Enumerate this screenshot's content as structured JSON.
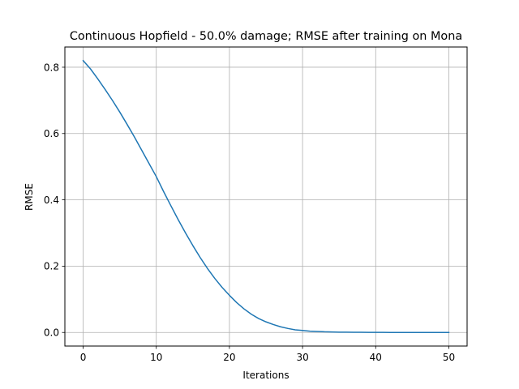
{
  "chart_data": {
    "type": "line",
    "title": "Continuous Hopfield - 50.0% damage; RMSE after training on Mona",
    "xlabel": "Iterations",
    "ylabel": "RMSE",
    "xlim": [
      -2.5,
      52.5
    ],
    "ylim": [
      -0.041,
      0.861
    ],
    "xticks": [
      0,
      10,
      20,
      30,
      40,
      50
    ],
    "yticks": [
      0.0,
      0.2,
      0.4,
      0.6,
      0.8
    ],
    "xtick_labels": [
      "0",
      "10",
      "20",
      "30",
      "40",
      "50"
    ],
    "ytick_labels": [
      "0.0",
      "0.2",
      "0.4",
      "0.6",
      "0.8"
    ],
    "grid": true,
    "series": [
      {
        "color": "#1f77b4",
        "x": [
          0,
          1,
          2,
          3,
          4,
          5,
          6,
          7,
          8,
          9,
          10,
          11,
          12,
          13,
          14,
          15,
          16,
          17,
          18,
          19,
          20,
          21,
          22,
          23,
          24,
          25,
          26,
          27,
          28,
          29,
          30,
          31,
          32,
          33,
          34,
          35,
          36,
          37,
          38,
          39,
          40,
          41,
          42,
          43,
          44,
          45,
          46,
          47,
          48,
          49,
          50
        ],
        "values": [
          0.82,
          0.795,
          0.765,
          0.733,
          0.7,
          0.665,
          0.628,
          0.59,
          0.55,
          0.51,
          0.47,
          0.425,
          0.382,
          0.34,
          0.3,
          0.262,
          0.226,
          0.193,
          0.163,
          0.136,
          0.112,
          0.09,
          0.071,
          0.055,
          0.042,
          0.032,
          0.024,
          0.017,
          0.012,
          0.008,
          0.006,
          0.004,
          0.003,
          0.002,
          0.0015,
          0.001,
          0.0008,
          0.0006,
          0.0004,
          0.0003,
          0.0002,
          0.0002,
          0.0001,
          0.0001,
          0.0001,
          0.0001,
          0.0,
          0.0,
          0.0,
          0.0,
          0.0
        ]
      }
    ]
  }
}
